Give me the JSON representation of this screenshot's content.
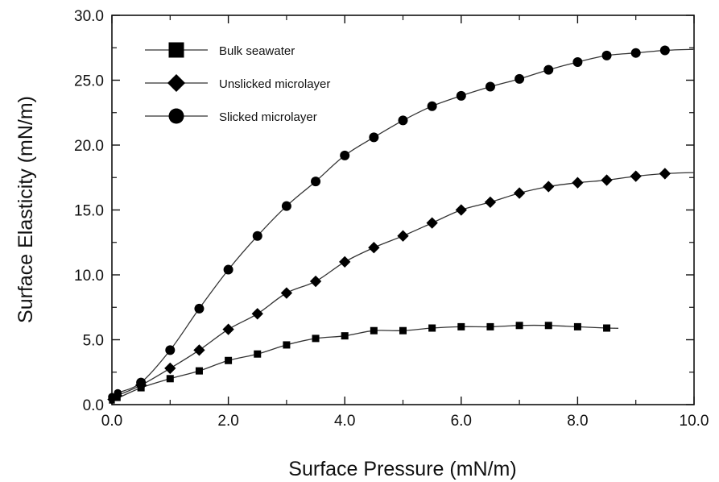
{
  "chart_data": {
    "type": "line",
    "xlabel": "Surface Pressure (mN/m)",
    "ylabel": "Surface Elasticity (mN/m)",
    "xlim": [
      0,
      10
    ],
    "ylim": [
      0,
      30
    ],
    "xticks": [
      "0.0",
      "2.0",
      "4.0",
      "6.0",
      "8.0",
      "10.0"
    ],
    "yticks": [
      "0.0",
      "5.0",
      "10.0",
      "15.0",
      "20.0",
      "25.0",
      "30.0"
    ],
    "grid": false,
    "legend_position": "top-left",
    "series": [
      {
        "name": "Bulk seawater",
        "marker": "square",
        "x": [
          0.0,
          0.1,
          0.5,
          1.0,
          1.5,
          2.0,
          2.5,
          3.0,
          3.5,
          4.0,
          4.5,
          5.0,
          5.5,
          6.0,
          6.5,
          7.0,
          7.5,
          8.0,
          8.5
        ],
        "y": [
          0.3,
          0.5,
          1.3,
          2.0,
          2.6,
          3.4,
          3.9,
          4.6,
          5.1,
          5.3,
          5.7,
          5.7,
          5.9,
          6.0,
          6.0,
          6.1,
          6.1,
          6.0,
          5.9
        ],
        "curve_end_x": 8.7
      },
      {
        "name": "Unslicked microlayer",
        "marker": "diamond",
        "x": [
          0.0,
          0.1,
          0.5,
          1.0,
          1.5,
          2.0,
          2.5,
          3.0,
          3.5,
          4.0,
          4.5,
          5.0,
          5.5,
          6.0,
          6.5,
          7.0,
          7.5,
          8.0,
          8.5,
          9.0,
          9.5
        ],
        "y": [
          0.4,
          0.7,
          1.5,
          2.8,
          4.2,
          5.8,
          7.0,
          8.6,
          9.5,
          11.0,
          12.1,
          13.0,
          14.0,
          15.0,
          15.6,
          16.3,
          16.8,
          17.1,
          17.3,
          17.6,
          17.8
        ],
        "curve_end_x": 10.0
      },
      {
        "name": "Slicked microlayer",
        "marker": "circle",
        "x": [
          0.0,
          0.1,
          0.5,
          1.0,
          1.5,
          2.0,
          2.5,
          3.0,
          3.5,
          4.0,
          4.5,
          5.0,
          5.5,
          6.0,
          6.5,
          7.0,
          7.5,
          8.0,
          8.5,
          9.0,
          9.5
        ],
        "y": [
          0.6,
          0.9,
          1.7,
          4.2,
          7.4,
          10.4,
          13.0,
          15.3,
          17.2,
          19.2,
          20.6,
          21.9,
          23.0,
          23.8,
          24.5,
          25.1,
          25.8,
          26.4,
          26.9,
          27.1,
          27.3
        ],
        "curve_end_x": 10.0
      }
    ]
  },
  "colors": {
    "marker": "#000000",
    "line": "#333333",
    "axis": "#111111",
    "background": "#ffffff"
  }
}
